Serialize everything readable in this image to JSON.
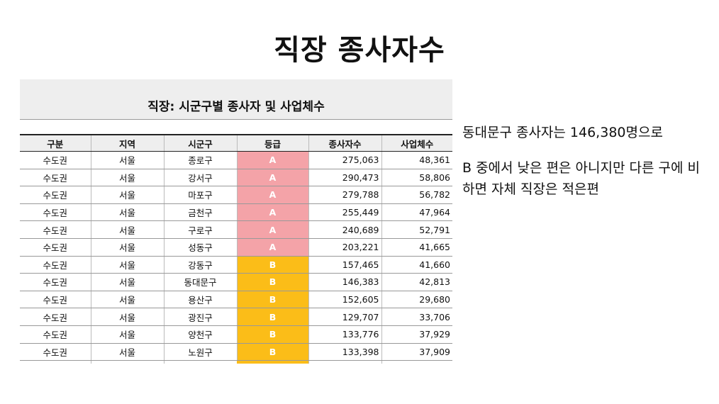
{
  "title": "직장 종사자수",
  "table": {
    "caption": "직장: 시군구별 종사자 및 사업체수",
    "columns": [
      "구분",
      "지역",
      "시군구",
      "등급",
      "종사자수",
      "사업체수"
    ],
    "rows": [
      [
        "수도권",
        "서울",
        "종로구",
        "A",
        "275,063",
        "48,361"
      ],
      [
        "수도권",
        "서울",
        "강서구",
        "A",
        "290,473",
        "58,806"
      ],
      [
        "수도권",
        "서울",
        "마포구",
        "A",
        "279,788",
        "56,782"
      ],
      [
        "수도권",
        "서울",
        "금천구",
        "A",
        "255,449",
        "47,964"
      ],
      [
        "수도권",
        "서울",
        "구로구",
        "A",
        "240,689",
        "52,791"
      ],
      [
        "수도권",
        "서울",
        "성동구",
        "A",
        "203,221",
        "41,665"
      ],
      [
        "수도권",
        "서울",
        "강동구",
        "B",
        "157,465",
        "41,660"
      ],
      [
        "수도권",
        "서울",
        "동대문구",
        "B",
        "146,383",
        "42,813"
      ],
      [
        "수도권",
        "서울",
        "용산구",
        "B",
        "152,605",
        "29,680"
      ],
      [
        "수도권",
        "서울",
        "광진구",
        "B",
        "129,707",
        "33,706"
      ],
      [
        "수도권",
        "서울",
        "양천구",
        "B",
        "133,776",
        "37,929"
      ],
      [
        "수도권",
        "서울",
        "노원구",
        "B",
        "133,398",
        "37,909"
      ]
    ]
  },
  "notes": {
    "line1": "동대문구 종사자는 146,380명으로",
    "line2": "B 중에서 낮은 편은 아니지만 다른 구에 비하면 자체 직장은 적은편"
  },
  "colors": {
    "grade_a": "#f4a3a8",
    "grade_b": "#fbbd18",
    "header_bg": "#eeeeee"
  }
}
